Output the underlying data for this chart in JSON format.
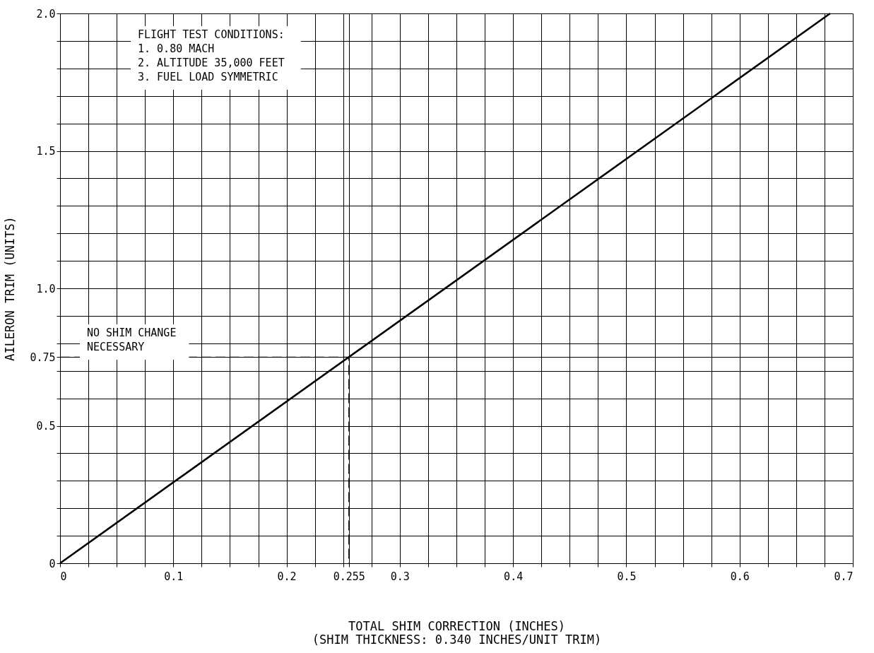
{
  "chart_data": {
    "type": "line",
    "xlabel": "TOTAL SHIM CORRECTION (INCHES)\n(SHIM THICKNESS: 0.340 INCHES/UNIT TRIM)",
    "ylabel": "AILERON TRIM (UNITS)",
    "annotations": [
      "FLIGHT TEST CONDITIONS:\n1. 0.80 MACH\n2. ALTITUDE 35,000 FEET\n3. FUEL LOAD SYMMETRIC",
      "NO SHIM CHANGE\nNECESSARY"
    ],
    "series": [
      {
        "color": "#000000",
        "x": [
          0,
          0.68
        ],
        "values": [
          0,
          2.0
        ],
        "line_style": "solid"
      },
      {
        "color": "#000000",
        "x": [
          0,
          0.255,
          0.255
        ],
        "values": [
          0.75,
          0.75,
          0
        ],
        "line_style": "dashed"
      }
    ],
    "xlim": [
      0,
      0.7
    ],
    "ylim": [
      0,
      2.0
    ],
    "xticks": [
      0,
      {
        "value": 0.025,
        "label": null
      },
      {
        "value": 0.05,
        "label": null
      },
      {
        "value": 0.075,
        "label": null
      },
      0.1,
      {
        "value": 0.125,
        "label": null
      },
      {
        "value": 0.15,
        "label": null
      },
      {
        "value": 0.175,
        "label": null
      },
      0.2,
      {
        "value": 0.225,
        "label": null
      },
      {
        "value": 0.25,
        "label": null
      },
      0.255,
      {
        "value": 0.275,
        "label": null
      },
      0.3,
      {
        "value": 0.325,
        "label": null
      },
      {
        "value": 0.35,
        "label": null
      },
      {
        "value": 0.375,
        "label": null
      },
      0.4,
      {
        "value": 0.425,
        "label": null
      },
      {
        "value": 0.45,
        "label": null
      },
      {
        "value": 0.475,
        "label": null
      },
      0.5,
      {
        "value": 0.525,
        "label": null
      },
      {
        "value": 0.55,
        "label": null
      },
      {
        "value": 0.575,
        "label": null
      },
      0.6,
      {
        "value": 0.625,
        "label": null
      },
      {
        "value": 0.65,
        "label": null
      },
      {
        "value": 0.675,
        "label": null
      },
      0.7
    ],
    "yticks": [
      0,
      {
        "value": 0.1,
        "label": null
      },
      {
        "value": 0.2,
        "label": null
      },
      {
        "value": 0.3,
        "label": null
      },
      {
        "value": 0.4,
        "label": null
      },
      0.5,
      {
        "value": 0.6,
        "label": null
      },
      {
        "value": 0.7,
        "label": null
      },
      0.75,
      {
        "value": 0.8,
        "label": null
      },
      {
        "value": 0.9,
        "label": null
      },
      {
        "value": 1.0,
        "label": "1.0"
      },
      {
        "value": 1.1,
        "label": null
      },
      {
        "value": 1.2,
        "label": null
      },
      {
        "value": 1.3,
        "label": null
      },
      {
        "value": 1.4,
        "label": null
      },
      1.5,
      {
        "value": 1.6,
        "label": null
      },
      {
        "value": 1.7,
        "label": null
      },
      {
        "value": 1.8,
        "label": null
      },
      {
        "value": 1.9,
        "label": null
      },
      {
        "value": 2.0,
        "label": "2.0"
      }
    ],
    "grid": true,
    "marker": "none"
  }
}
